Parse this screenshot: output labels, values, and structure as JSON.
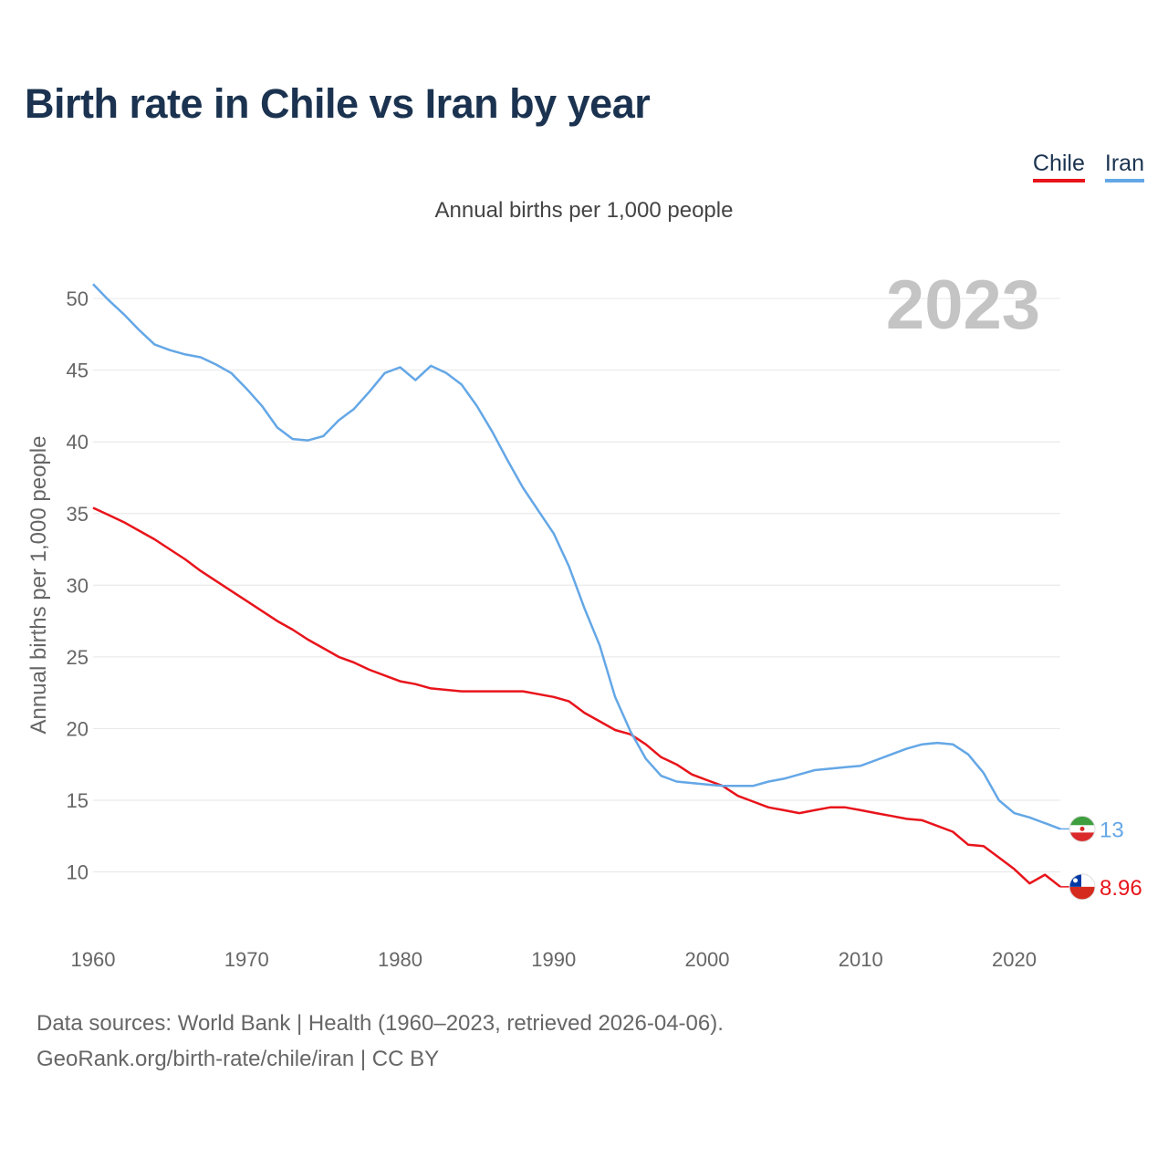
{
  "title": "Birth rate in Chile vs Iran by year",
  "subtitle": "Annual births per 1,000 people",
  "legend": {
    "chile": "Chile",
    "iran": "Iran"
  },
  "year_label": "2023",
  "footer": {
    "line1": "Data sources: World Bank | Health (1960–2023, retrieved 2026-04-06).",
    "line2": "GeoRank.org/birth-rate/chile/iran | CC BY"
  },
  "colors": {
    "chile": "#e8141b",
    "iran": "#64a7e6",
    "grid": "#e6e6e6",
    "axis_text": "#666666",
    "year_watermark": "#c4c4c4"
  },
  "chart_data": {
    "type": "line",
    "title": "Birth rate in Chile vs Iran by year",
    "xlabel": "",
    "ylabel": "Annual births per 1,000 people",
    "xlim": [
      1960,
      2023
    ],
    "ylim": [
      6,
      52
    ],
    "x_ticks": [
      1960,
      1970,
      1980,
      1990,
      2000,
      2010,
      2020
    ],
    "y_ticks": [
      10,
      15,
      20,
      25,
      30,
      35,
      40,
      45,
      50
    ],
    "grid": true,
    "legend_position": "top-right",
    "x": [
      1960,
      1961,
      1962,
      1963,
      1964,
      1965,
      1966,
      1967,
      1968,
      1969,
      1970,
      1971,
      1972,
      1973,
      1974,
      1975,
      1976,
      1977,
      1978,
      1979,
      1980,
      1981,
      1982,
      1983,
      1984,
      1985,
      1986,
      1987,
      1988,
      1989,
      1990,
      1991,
      1992,
      1993,
      1994,
      1995,
      1996,
      1997,
      1998,
      1999,
      2000,
      2001,
      2002,
      2003,
      2004,
      2005,
      2006,
      2007,
      2008,
      2009,
      2010,
      2011,
      2012,
      2013,
      2014,
      2015,
      2016,
      2017,
      2018,
      2019,
      2020,
      2021,
      2022,
      2023
    ],
    "series": [
      {
        "name": "Chile",
        "color": "#e8141b",
        "end_label": "8.96",
        "values": [
          35.4,
          34.9,
          34.4,
          33.8,
          33.2,
          32.5,
          31.8,
          31.0,
          30.3,
          29.6,
          28.9,
          28.2,
          27.5,
          26.9,
          26.2,
          25.6,
          25.0,
          24.6,
          24.1,
          23.7,
          23.3,
          23.1,
          22.8,
          22.7,
          22.6,
          22.6,
          22.6,
          22.6,
          22.6,
          22.4,
          22.2,
          21.9,
          21.1,
          20.5,
          19.9,
          19.6,
          18.9,
          18.0,
          17.5,
          16.8,
          16.4,
          16.0,
          15.3,
          14.9,
          14.5,
          14.3,
          14.1,
          14.3,
          14.5,
          14.5,
          14.3,
          14.1,
          13.9,
          13.7,
          13.6,
          13.2,
          12.8,
          11.9,
          11.8,
          11.0,
          10.2,
          9.2,
          9.8,
          8.96
        ]
      },
      {
        "name": "Iran",
        "color": "#64a7e6",
        "end_label": "13",
        "values": [
          51.0,
          49.9,
          48.9,
          47.8,
          46.8,
          46.4,
          46.1,
          45.9,
          45.4,
          44.8,
          43.7,
          42.5,
          41.0,
          40.2,
          40.1,
          40.4,
          41.5,
          42.3,
          43.5,
          44.8,
          45.2,
          44.3,
          45.3,
          44.8,
          44.0,
          42.5,
          40.7,
          38.7,
          36.8,
          35.2,
          33.6,
          31.3,
          28.4,
          25.8,
          22.2,
          19.8,
          17.9,
          16.7,
          16.3,
          16.2,
          16.1,
          16.0,
          16.0,
          16.0,
          16.3,
          16.5,
          16.8,
          17.1,
          17.2,
          17.3,
          17.4,
          17.8,
          18.2,
          18.6,
          18.9,
          19.0,
          18.9,
          18.2,
          16.9,
          15.0,
          14.1,
          13.8,
          13.4,
          13.0
        ]
      }
    ]
  }
}
